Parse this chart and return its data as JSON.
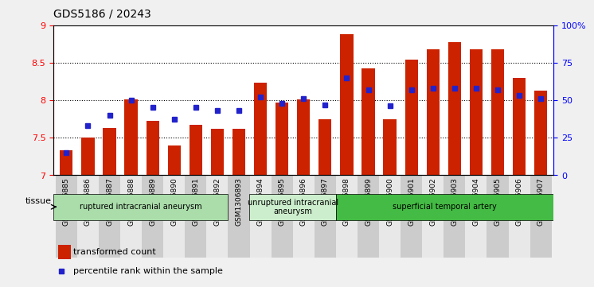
{
  "title": "GDS5186 / 20243",
  "samples": [
    "GSM1306885",
    "GSM1306886",
    "GSM1306887",
    "GSM1306888",
    "GSM1306889",
    "GSM1306890",
    "GSM1306891",
    "GSM1306892",
    "GSM1306893",
    "GSM1306894",
    "GSM1306895",
    "GSM1306896",
    "GSM1306897",
    "GSM1306898",
    "GSM1306899",
    "GSM1306900",
    "GSM1306901",
    "GSM1306902",
    "GSM1306903",
    "GSM1306904",
    "GSM1306905",
    "GSM1306906",
    "GSM1306907"
  ],
  "transformed_count": [
    7.33,
    7.5,
    7.63,
    8.01,
    7.72,
    7.4,
    7.67,
    7.62,
    7.62,
    8.23,
    7.97,
    8.01,
    7.75,
    8.88,
    8.42,
    7.75,
    8.54,
    8.68,
    8.77,
    8.68,
    8.68,
    8.3,
    8.13
  ],
  "percentile_rank": [
    15,
    33,
    40,
    50,
    45,
    37,
    45,
    43,
    43,
    52,
    48,
    51,
    47,
    65,
    57,
    46,
    57,
    58,
    58,
    58,
    57,
    53,
    51
  ],
  "ylim_left": [
    7,
    9
  ],
  "ylim_right": [
    0,
    100
  ],
  "yticks_left": [
    7,
    7.5,
    8,
    8.5,
    9
  ],
  "yticks_right": [
    0,
    25,
    50,
    75,
    100
  ],
  "ytick_labels_right": [
    "0",
    "25",
    "50",
    "75",
    "100%"
  ],
  "bar_color": "#cc2200",
  "dot_color": "#2222cc",
  "bg_color": "#f0f0f0",
  "plot_bg": "#ffffff",
  "groups": [
    {
      "label": "ruptured intracranial aneurysm",
      "start": 0,
      "end": 8,
      "color": "#aaddaa"
    },
    {
      "label": "unruptured intracranial\naneurysm",
      "start": 9,
      "end": 13,
      "color": "#cceecc"
    },
    {
      "label": "superficial temporal artery",
      "start": 13,
      "end": 23,
      "color": "#44bb44"
    }
  ],
  "tissue_label": "tissue",
  "legend_bar_label": "transformed count",
  "legend_dot_label": "percentile rank within the sample"
}
